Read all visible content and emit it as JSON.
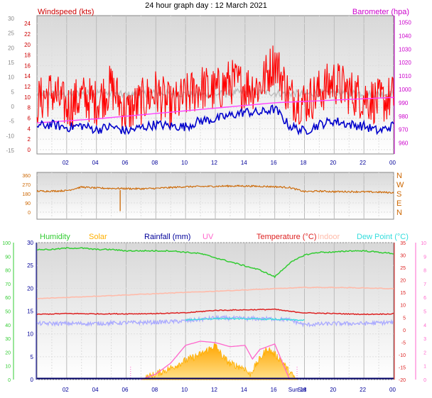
{
  "title": "24 hour graph day : 12 March 2021",
  "colors": {
    "wind_axis": "#cc0000",
    "baro_axis": "#cc00cc",
    "gust": "#ff0000",
    "avg_wind": "#0000cc",
    "baro_line": "#ff44ff",
    "baro_grey": "#bdbdbd",
    "wind_dir": "#cc6600",
    "humidity": "#33cc33",
    "solar": "#ffb000",
    "rain": "#000066",
    "uv": "#ff66cc",
    "temperature": "#dd2222",
    "indoor": "#ffbbaa",
    "dew_point": "#33dddd",
    "dew_band": "#aaaaff",
    "axis_blue": "#000099"
  },
  "chart_data": [
    {
      "type": "line",
      "name": "wind-baro",
      "left_axis": {
        "label": "Windspeed (kts)",
        "ticks": [
          24,
          22,
          20,
          18,
          16,
          14,
          12,
          10,
          8,
          6,
          4,
          2,
          0
        ]
      },
      "left_axis_outer": {
        "ticks": [
          30,
          25,
          20,
          15,
          10,
          5,
          0,
          -5,
          -10,
          -15
        ]
      },
      "right_axis": {
        "label": "Barometer (hpa)",
        "ticks": [
          1050,
          1040,
          1030,
          1020,
          1010,
          1000,
          990,
          980,
          970,
          960
        ],
        "ylim": [
          955,
          1055
        ]
      },
      "x_ticks": [
        "02",
        "04",
        "06",
        "08",
        "10",
        "12",
        "14",
        "16",
        "18",
        "20",
        "22",
        "00"
      ],
      "ylim": [
        0,
        25.5
      ],
      "series": [
        {
          "name": "gust",
          "x": [
            0,
            1,
            2,
            3,
            4,
            5,
            6,
            7,
            8,
            9,
            10,
            11,
            12,
            13,
            14,
            15,
            16,
            17,
            18,
            19,
            20,
            21,
            22,
            23,
            24
          ],
          "values": [
            9,
            11,
            8,
            10,
            9,
            12,
            7,
            9,
            11,
            8,
            10,
            12,
            11,
            13,
            12,
            12,
            17,
            10,
            9,
            11,
            13,
            11,
            10,
            9,
            10
          ]
        },
        {
          "name": "avg",
          "x": [
            0,
            1,
            2,
            3,
            4,
            5,
            6,
            7,
            8,
            9,
            10,
            11,
            12,
            13,
            14,
            15,
            16,
            17,
            18,
            19,
            20,
            21,
            22,
            23,
            24
          ],
          "values": [
            4.5,
            4.8,
            4.2,
            4.6,
            3.8,
            4.4,
            3.5,
            4.2,
            4.8,
            4.5,
            4.4,
            5.5,
            5.8,
            6.5,
            7.2,
            7.0,
            7.8,
            4.5,
            3.5,
            4.8,
            5.5,
            4.8,
            4.5,
            3.5,
            4.6
          ]
        },
        {
          "name": "barometer",
          "x": [
            0,
            2,
            4,
            6,
            8,
            10,
            12,
            14,
            16,
            18,
            20,
            22,
            24
          ],
          "values": [
            975,
            976.5,
            978,
            980,
            982,
            984,
            986,
            988,
            990,
            991,
            992,
            993,
            994
          ]
        },
        {
          "name": "grey",
          "x": [
            0,
            2,
            4,
            6,
            8,
            10,
            12,
            14,
            16,
            18,
            20,
            22,
            24
          ],
          "values": [
            10.7,
            10.6,
            10.9,
            10.4,
            10.8,
            10.6,
            10.5,
            11.0,
            10.8,
            10.6,
            10.9,
            10.7,
            10.6
          ]
        }
      ]
    },
    {
      "type": "line",
      "name": "wind-direction",
      "left_ticks": [
        "360",
        "270",
        "180",
        "90",
        "0"
      ],
      "right_ticks": [
        "N",
        "W",
        "S",
        "E",
        "N"
      ],
      "ylim": [
        0,
        360
      ],
      "x": [
        0,
        1,
        2,
        3,
        4,
        5,
        6,
        7,
        8,
        9,
        10,
        11,
        12,
        13,
        14,
        15,
        16,
        17,
        18,
        19,
        20,
        21,
        22,
        23,
        24
      ],
      "values": [
        205,
        205,
        210,
        245,
        235,
        232,
        230,
        228,
        232,
        240,
        248,
        250,
        252,
        255,
        255,
        252,
        248,
        240,
        200,
        205,
        200,
        200,
        198,
        195,
        190
      ]
    },
    {
      "type": "line",
      "name": "environment",
      "legend": [
        "Humidity",
        "Solar",
        "Rainfall (mm)",
        "UV",
        "Temperature (°C)",
        "Indoor",
        "Dew Point (°C)"
      ],
      "axis_hum": [
        100,
        90,
        80,
        70,
        60,
        50,
        40,
        30,
        20,
        10,
        0
      ],
      "axis_rain": [
        30,
        25,
        20,
        15,
        10,
        5,
        0
      ],
      "axis_temp": [
        35,
        30,
        25,
        20,
        15,
        10,
        5,
        0,
        -5,
        -10,
        -15,
        -20
      ],
      "axis_uv": [
        10,
        9,
        8,
        7,
        6,
        5,
        4,
        3,
        2,
        1,
        0
      ],
      "x_ticks": [
        "02",
        "04",
        "06",
        "08",
        "10",
        "12",
        "14",
        "16",
        "18",
        "20",
        "22",
        "00"
      ],
      "sun_label": "Sun",
      "set_label": "Set",
      "series": [
        {
          "name": "humidity",
          "x": [
            0,
            1,
            2,
            3,
            4,
            5,
            6,
            7,
            8,
            9,
            10,
            11,
            12,
            13,
            14,
            15,
            16,
            17,
            18,
            19,
            20,
            21,
            22,
            23,
            24
          ],
          "values": [
            95,
            95,
            96,
            96,
            95,
            95,
            94,
            94,
            94,
            94,
            93,
            92,
            89,
            86,
            83,
            80,
            75,
            85,
            91,
            93,
            93,
            94,
            94,
            93,
            92
          ]
        },
        {
          "name": "indoor",
          "x": [
            0,
            2,
            4,
            6,
            8,
            10,
            12,
            14,
            16,
            18,
            20,
            22,
            24
          ],
          "values": [
            12.5,
            13,
            13.5,
            14,
            14.5,
            15,
            15.5,
            16,
            16.5,
            17,
            17,
            16.8,
            16.5
          ]
        },
        {
          "name": "temperature",
          "x": [
            0,
            2,
            4,
            6,
            8,
            10,
            12,
            14,
            16,
            17,
            18,
            20,
            22,
            24
          ],
          "values": [
            6.2,
            6.5,
            6.4,
            6.4,
            6.5,
            6.8,
            7.8,
            8.0,
            8.2,
            7.4,
            6.8,
            6.5,
            6.2,
            6.4
          ]
        },
        {
          "name": "dew_band",
          "x": [
            0,
            2,
            4,
            6,
            8,
            10,
            12,
            14,
            16,
            17,
            18,
            20,
            22,
            24
          ],
          "values": [
            2.5,
            2.5,
            2.5,
            2.8,
            3.0,
            3.5,
            4.8,
            4.5,
            4.4,
            4.0,
            2.0,
            2.5,
            2.5,
            3.0
          ]
        },
        {
          "name": "dew_point",
          "x": [
            10,
            12,
            14,
            16,
            18
          ],
          "values": [
            4.0,
            4.5,
            4.4,
            4.2,
            3.8
          ]
        },
        {
          "name": "solar",
          "x": [
            7,
            8,
            9,
            10,
            11,
            12,
            12.5,
            13,
            14,
            14.3,
            14.7,
            15,
            15.5,
            16,
            16.5,
            17,
            17.5
          ],
          "values": [
            0,
            1.2,
            2.5,
            4.2,
            5.5,
            7.5,
            5.0,
            3.5,
            2.5,
            1.0,
            3.0,
            4.5,
            6.8,
            5.5,
            4.0,
            1.5,
            0
          ]
        },
        {
          "name": "uv",
          "x": [
            7,
            8,
            9,
            10,
            11,
            12,
            13,
            14,
            14.5,
            15,
            16,
            17
          ],
          "values": [
            0,
            0.4,
            1.2,
            2.5,
            2.8,
            2.7,
            2.4,
            2.5,
            1.5,
            2.2,
            2.6,
            0
          ]
        },
        {
          "name": "rainfall",
          "x": [
            0,
            24
          ],
          "values": [
            0,
            0
          ]
        }
      ]
    }
  ]
}
